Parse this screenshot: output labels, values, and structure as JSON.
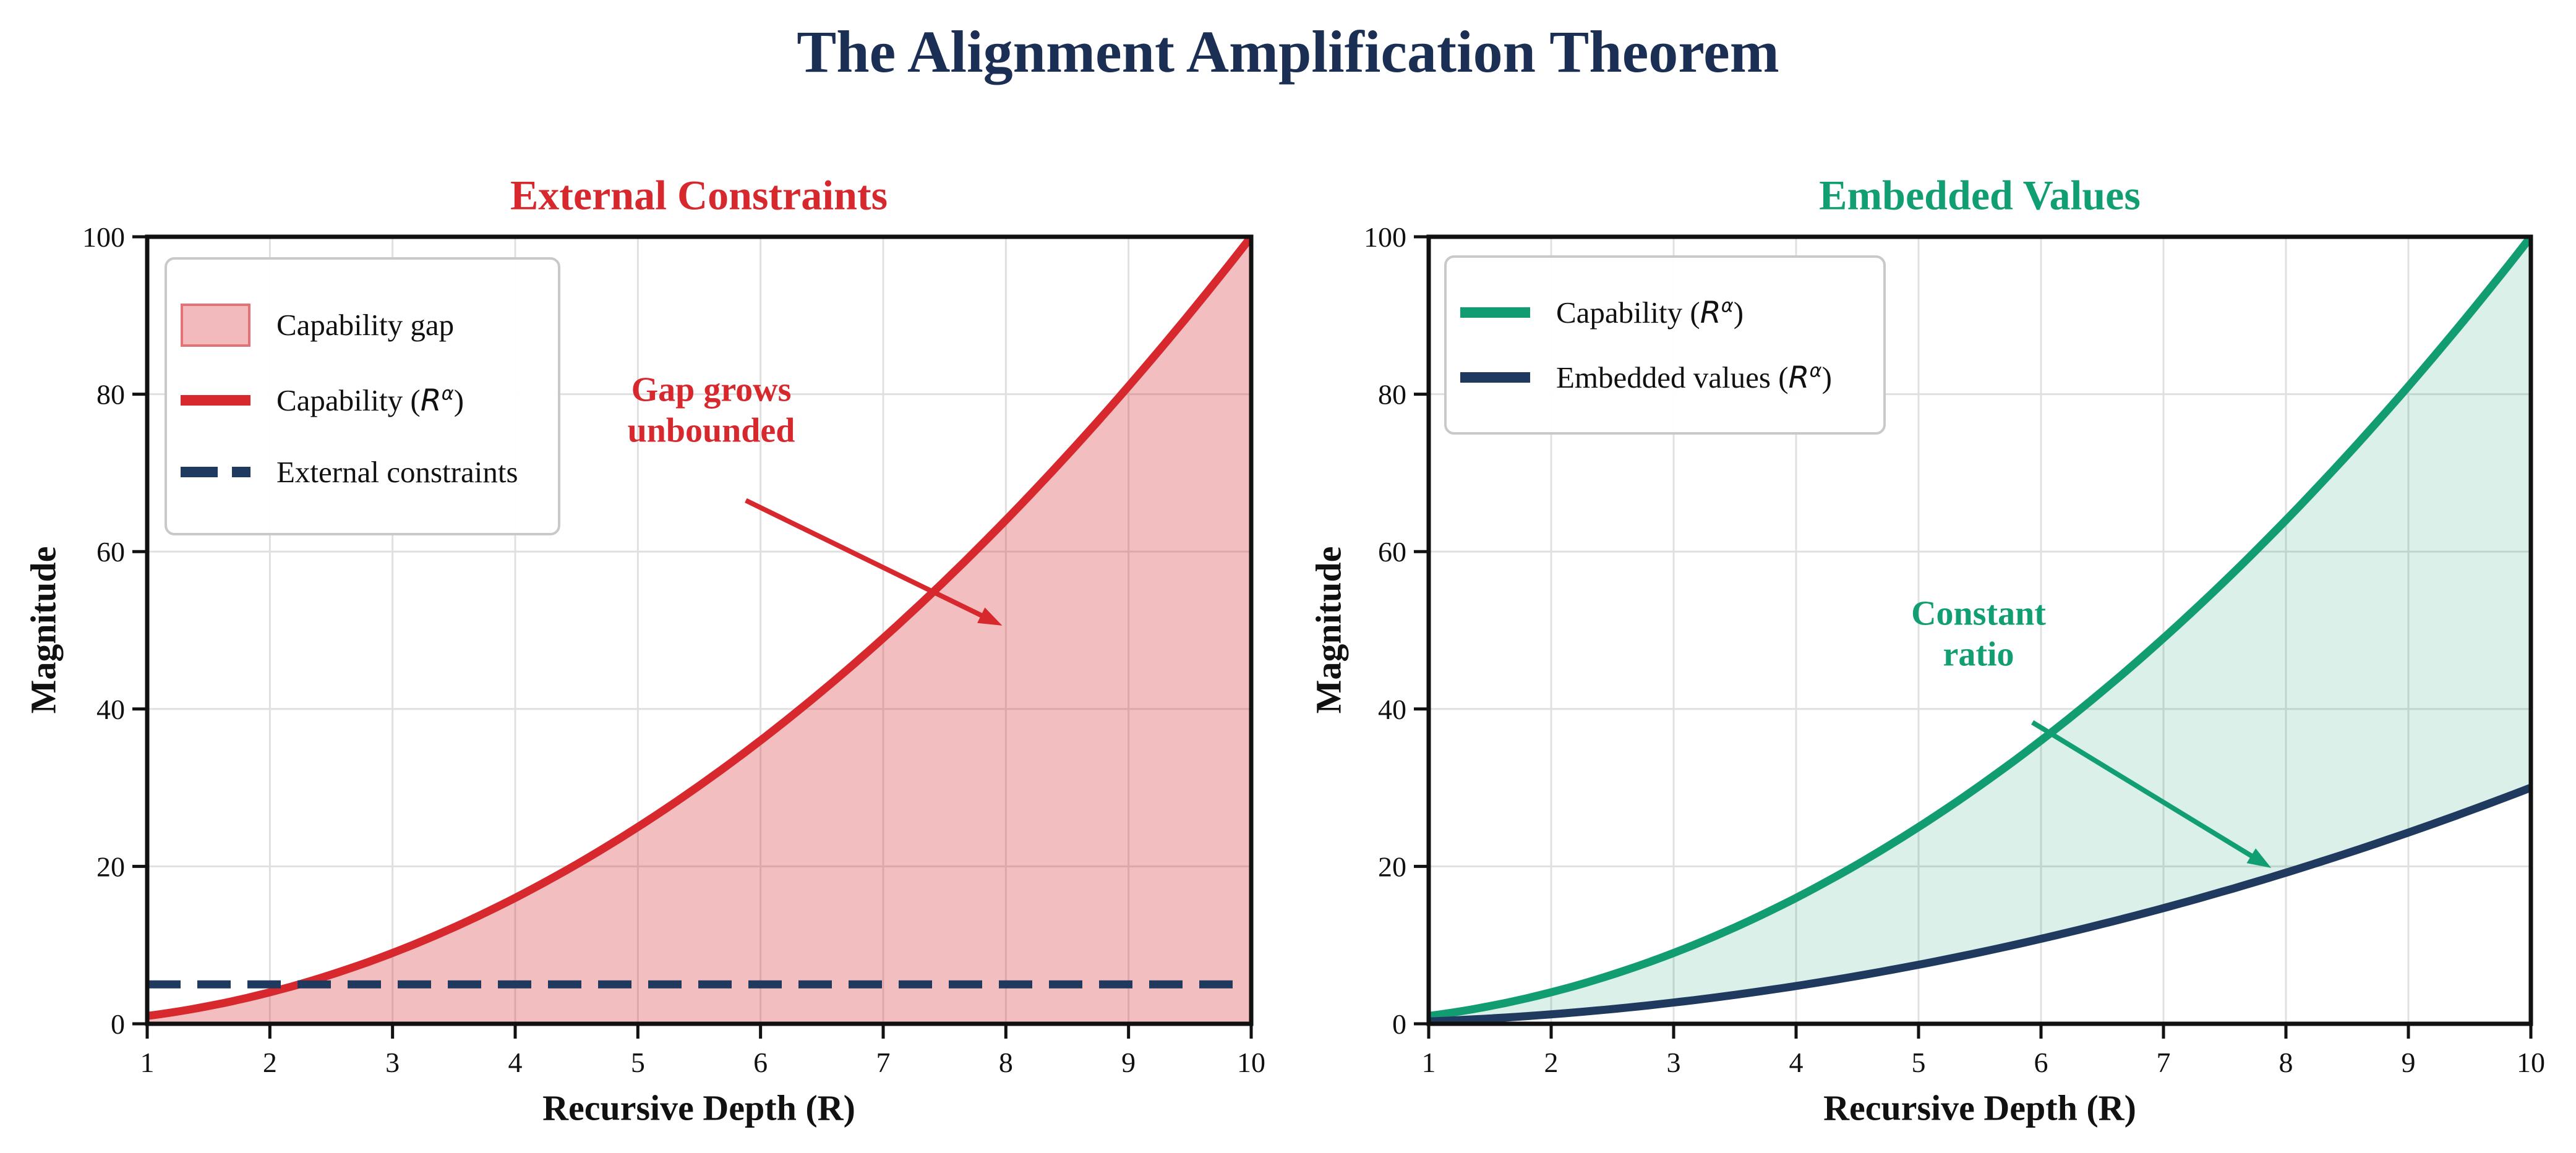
{
  "figure": {
    "title": "The Alignment Amplification Theorem",
    "title_color": "#1b2e54",
    "background": "#ffffff"
  },
  "chart_data": [
    {
      "type": "area",
      "panel": "left",
      "title": "External Constraints",
      "title_color": "#d7282e",
      "xlabel": "Recursive Depth (R)",
      "ylabel": "Magnitude",
      "xlim": [
        1,
        10
      ],
      "ylim": [
        0,
        100
      ],
      "x_ticks": [
        1,
        2,
        3,
        4,
        5,
        6,
        7,
        8,
        9,
        10
      ],
      "y_ticks": [
        0,
        20,
        40,
        60,
        80,
        100
      ],
      "grid": true,
      "grid_color": "#e0e0e0",
      "legend_position": "upper left",
      "x": [
        1,
        2,
        3,
        4,
        5,
        6,
        7,
        8,
        9,
        10
      ],
      "series": [
        {
          "name": "Capability (R^α)",
          "exponent": 2,
          "scale": 1,
          "values": [
            1,
            4,
            9,
            16,
            25,
            36,
            49,
            64,
            81,
            100
          ],
          "color": "#d7282e",
          "line": "solid",
          "width": 13,
          "fill_below": "rgba(214,39,46,0.30)"
        },
        {
          "name": "External constraints",
          "constant": 5,
          "values": [
            5,
            5,
            5,
            5,
            5,
            5,
            5,
            5,
            5,
            5
          ],
          "color": "#1f3a5e",
          "line": "dashed",
          "width": 13
        }
      ],
      "annotation": {
        "lines": [
          "Gap grows",
          "unbounded"
        ],
        "color": "#d7282e",
        "text_center": [
          5.6,
          77.9
        ],
        "arrow_from": [
          5.88,
          66.5
        ],
        "arrow_to": [
          7.97,
          50.6
        ]
      }
    },
    {
      "type": "area",
      "panel": "right",
      "title": "Embedded Values",
      "title_color": "#119e73",
      "xlabel": "Recursive Depth (R)",
      "ylabel": "Magnitude",
      "xlim": [
        1,
        10
      ],
      "ylim": [
        0,
        100
      ],
      "x_ticks": [
        1,
        2,
        3,
        4,
        5,
        6,
        7,
        8,
        9,
        10
      ],
      "y_ticks": [
        0,
        20,
        40,
        60,
        80,
        100
      ],
      "grid": true,
      "grid_color": "#e0e0e0",
      "legend_position": "upper left",
      "x": [
        1,
        2,
        3,
        4,
        5,
        6,
        7,
        8,
        9,
        10
      ],
      "series": [
        {
          "name": "Capability (R^α)",
          "exponent": 2,
          "scale": 1,
          "values": [
            1,
            4,
            9,
            16,
            25,
            36,
            49,
            64,
            81,
            100
          ],
          "color": "#129c72",
          "line": "solid",
          "width": 13
        },
        {
          "name": "Embedded values (R^α)",
          "exponent": 2,
          "scale": 0.3,
          "values": [
            0.3,
            1.2,
            2.7,
            4.8,
            7.5,
            10.8,
            14.7,
            19.2,
            24.3,
            30
          ],
          "color": "#1f3a5e",
          "line": "solid",
          "width": 13
        }
      ],
      "fill_between": {
        "upper": 0,
        "lower": 1,
        "color": "rgba(18,156,114,0.15)"
      },
      "annotation": {
        "lines": [
          "Constant",
          "ratio"
        ],
        "color": "#119e73",
        "text_center": [
          5.49,
          49.5
        ],
        "arrow_from": [
          5.93,
          38.3
        ],
        "arrow_to": [
          7.88,
          19.8
        ]
      }
    }
  ],
  "legend": {
    "left": {
      "entries": [
        {
          "label": "Capability gap",
          "fill": "rgba(214,39,46,0.32)",
          "edge": "rgba(214,39,46,0.5)"
        },
        {
          "label_parts": {
            "pre": "Capability (",
            "var": "R",
            "sup": "α",
            "post": ")"
          }
        },
        {
          "label": "External constraints"
        }
      ]
    },
    "right": {
      "entries": [
        {
          "label_parts": {
            "pre": "Capability (",
            "var": "R",
            "sup": "α",
            "post": ")"
          }
        },
        {
          "label_parts": {
            "pre": "Embedded values (",
            "var": "R",
            "sup": "α",
            "post": ")"
          }
        }
      ]
    }
  },
  "style": {
    "spine_color": "#111111",
    "tick_color": "#111111"
  }
}
